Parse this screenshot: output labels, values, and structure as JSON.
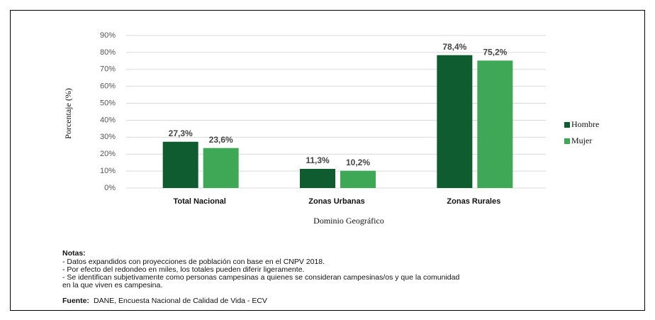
{
  "chart_data": {
    "type": "bar",
    "xlabel": "Dominio Geográfico",
    "ylabel": "Porcentaje (%)",
    "categories": [
      "Total Nacional",
      "Zonas Urbanas",
      "Zonas Rurales"
    ],
    "series": [
      {
        "name": "Hombre",
        "color": "#0f5c30",
        "values": [
          27.3,
          11.3,
          78.4
        ],
        "value_labels": [
          "27,3%",
          "11,3%",
          "78,4%"
        ]
      },
      {
        "name": "Mujer",
        "color": "#3ea856",
        "values": [
          23.6,
          10.2,
          75.2
        ],
        "value_labels": [
          "23,6%",
          "10,2%",
          "75,2%"
        ]
      }
    ],
    "ylim": [
      0,
      90
    ],
    "yticks": [
      {
        "value": 0,
        "label": "0%"
      },
      {
        "value": 10,
        "label": "10%"
      },
      {
        "value": 20,
        "label": "20%"
      },
      {
        "value": 30,
        "label": "30%"
      },
      {
        "value": 40,
        "label": "40%"
      },
      {
        "value": 50,
        "label": "50%"
      },
      {
        "value": 60,
        "label": "60%"
      },
      {
        "value": 70,
        "label": "70%"
      },
      {
        "value": 80,
        "label": "80%"
      },
      {
        "value": 90,
        "label": "90%"
      }
    ],
    "grid": true,
    "legend": "right"
  },
  "notes": {
    "title": "Notas:",
    "lines": [
      "- Datos expandidos con proyecciones de población con base en el CNPV 2018.",
      "- Por efecto del redondeo en miles, los totales pueden diferir ligeramente.",
      "- Se identifican subjetivamente como personas campesinas a quienes se consideran campesinas/os y que la comunidad",
      "en la que viven es campesina."
    ],
    "source_label": "Fuente:",
    "source_text": "DANE, Encuesta Nacional de Calidad de Vida - ECV"
  }
}
